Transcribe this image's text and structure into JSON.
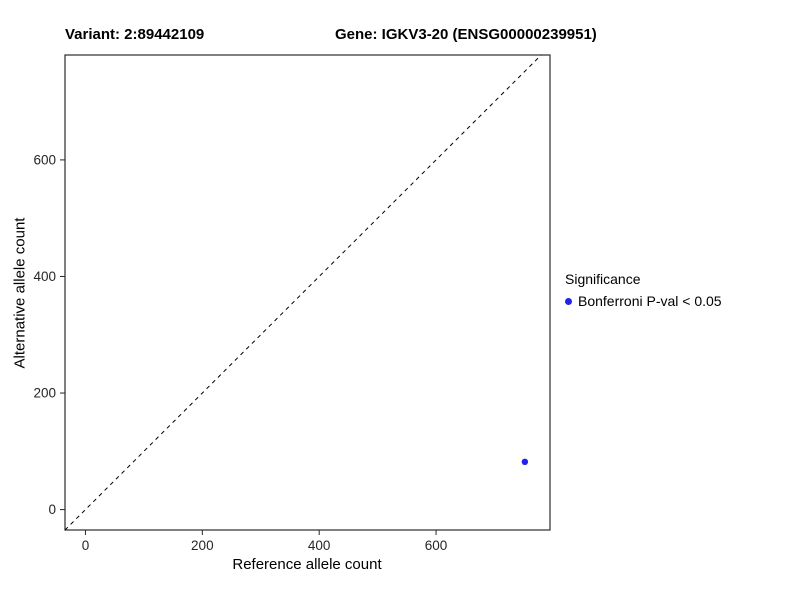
{
  "chart_data": {
    "type": "scatter",
    "title_left": "Variant: 2:89442109",
    "title_right": "Gene: IGKV3-20 (ENSG00000239951)",
    "xlabel": "Reference allele count",
    "ylabel": "Alternative allele count",
    "xlim": [
      -35,
      795
    ],
    "ylim": [
      -35,
      780
    ],
    "x_ticks": [
      0,
      200,
      400,
      600
    ],
    "y_ticks": [
      0,
      200,
      400,
      600
    ],
    "grid": false,
    "reference_line": {
      "style": "dashed",
      "slope": 1,
      "intercept": 0,
      "color": "#000000"
    },
    "series": [
      {
        "name": "Bonferroni P-val < 0.05",
        "color": "#2222EE",
        "points": [
          {
            "x": 752,
            "y": 82
          }
        ]
      }
    ],
    "legend": {
      "position": "right",
      "title": "Significance",
      "entries": [
        {
          "label": "Bonferroni P-val < 0.05",
          "color": "#2222EE"
        }
      ]
    }
  }
}
